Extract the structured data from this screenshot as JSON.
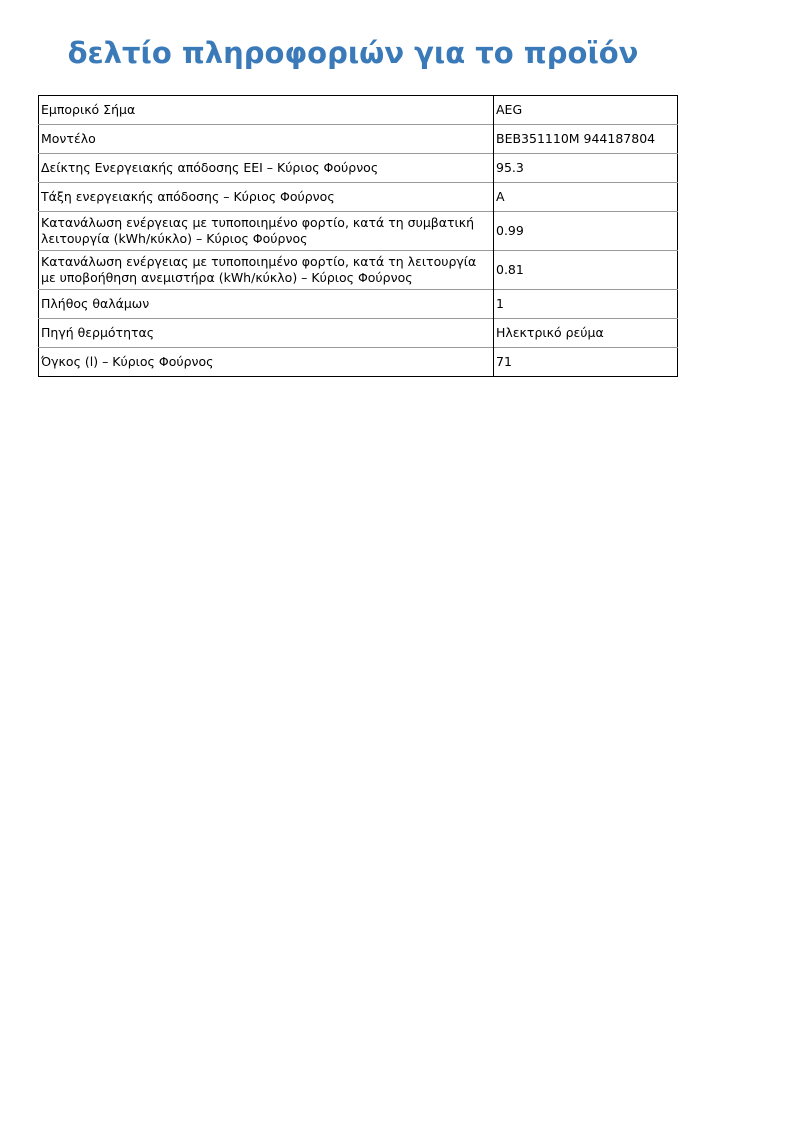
{
  "title": "δελτίο πληροφοριών για το προϊόν",
  "title_color": "#3a7ab8",
  "rows": [
    {
      "label": "Εμπορικό Σήμα",
      "value": "AEG"
    },
    {
      "label": "Μοντέλο",
      "value": "BEB351110M 944187804"
    },
    {
      "label": "Δείκτης Ενεργειακής απόδοσης EEI – Κύριος Φούρνος",
      "value": "95.3"
    },
    {
      "label": "Τάξη ενεργειακής απόδοσης – Κύριος Φούρνος",
      "value": "A"
    },
    {
      "label": "Κατανάλωση ενέργειας με τυποποιημένο φορτίο, κατά τη συμβατική λειτουργία (kWh/κύκλο) – Κύριος Φούρνος",
      "value": "0.99"
    },
    {
      "label": "Κατανάλωση ενέργειας με τυποποιημένο φορτίο, κατά τη λειτουργία με υποβοήθηση ανεμιστήρα (kWh/κύκλο) – Κύριος Φούρνος",
      "value": "0.81"
    },
    {
      "label": "Πλήθος θαλάμων",
      "value": "1"
    },
    {
      "label": "Πηγή θερμότητας",
      "value": "Ηλεκτρικό ρεύμα"
    },
    {
      "label": "Όγκος (l) – Κύριος Φούρνος",
      "value": "71"
    }
  ]
}
